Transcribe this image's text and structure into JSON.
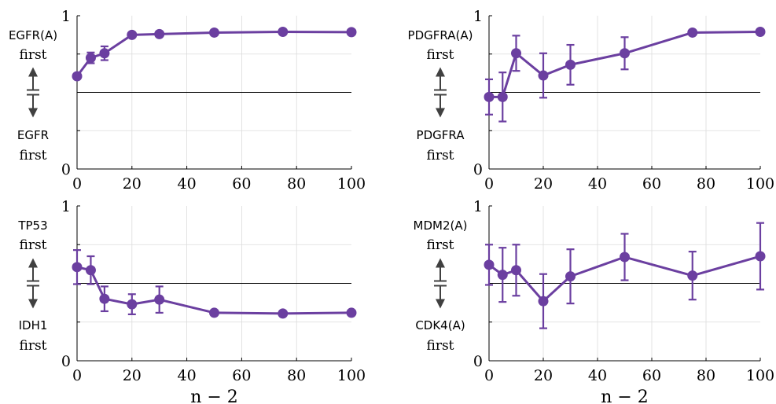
{
  "chart_data": [
    {
      "type": "line",
      "title": "",
      "xlabel": "",
      "ylabel": "",
      "top_label": [
        "EGFR(A)",
        "first"
      ],
      "bottom_label": [
        "EGFR",
        "first"
      ],
      "x": [
        0,
        5,
        10,
        20,
        30,
        50,
        75,
        100
      ],
      "xticks": [
        "0",
        "20",
        "40",
        "60",
        "80",
        "100"
      ],
      "yticks": [
        "0",
        "1"
      ],
      "xlim": [
        0,
        100
      ],
      "ylim": [
        0,
        1
      ],
      "reference_line": 0.5,
      "grid": true,
      "series": [
        {
          "values": [
            0.605,
            0.725,
            0.755,
            0.875,
            0.88,
            0.89,
            0.895,
            0.893
          ],
          "error": [
            0,
            0.035,
            0.045,
            0,
            0,
            0,
            0,
            0
          ]
        }
      ]
    },
    {
      "type": "line",
      "title": "",
      "xlabel": "",
      "ylabel": "",
      "top_label": [
        "PDGFRA(A)",
        "first"
      ],
      "bottom_label": [
        "PDGFRA",
        "first"
      ],
      "x": [
        0,
        5,
        10,
        20,
        30,
        50,
        75,
        100
      ],
      "xticks": [
        "0",
        "20",
        "40",
        "60",
        "80",
        "100"
      ],
      "yticks": [
        "0",
        "1"
      ],
      "xlim": [
        0,
        100
      ],
      "ylim": [
        0,
        1
      ],
      "reference_line": 0.5,
      "grid": true,
      "series": [
        {
          "values": [
            0.47,
            0.47,
            0.755,
            0.61,
            0.68,
            0.755,
            0.89,
            0.895
          ],
          "error": [
            0.115,
            0.16,
            0.115,
            0.145,
            0.13,
            0.105,
            0,
            0
          ]
        }
      ]
    },
    {
      "type": "line",
      "title": "",
      "xlabel": "n − 2",
      "ylabel": "",
      "top_label": [
        "TP53",
        "first"
      ],
      "bottom_label": [
        "IDH1",
        "first"
      ],
      "x": [
        0,
        5,
        10,
        20,
        30,
        50,
        75,
        100
      ],
      "xticks": [
        "0",
        "20",
        "40",
        "60",
        "80",
        "100"
      ],
      "yticks": [
        "0",
        "1"
      ],
      "xlim": [
        0,
        100
      ],
      "ylim": [
        0,
        1
      ],
      "reference_line": 0.5,
      "grid": true,
      "series": [
        {
          "values": [
            0.605,
            0.585,
            0.4,
            0.365,
            0.395,
            0.31,
            0.305,
            0.31
          ],
          "error": [
            0.11,
            0.09,
            0.08,
            0.065,
            0.085,
            0,
            0,
            0
          ]
        }
      ]
    },
    {
      "type": "line",
      "title": "",
      "xlabel": "n − 2",
      "ylabel": "",
      "top_label": [
        "MDM2(A)",
        "first"
      ],
      "bottom_label": [
        "CDK4(A)",
        "first"
      ],
      "x": [
        0,
        5,
        10,
        20,
        30,
        50,
        75,
        100
      ],
      "xticks": [
        "0",
        "20",
        "40",
        "60",
        "80",
        "100"
      ],
      "yticks": [
        "0",
        "1"
      ],
      "xlim": [
        0,
        100
      ],
      "ylim": [
        0,
        1
      ],
      "reference_line": 0.5,
      "grid": true,
      "series": [
        {
          "values": [
            0.62,
            0.555,
            0.585,
            0.385,
            0.545,
            0.67,
            0.55,
            0.675
          ],
          "error": [
            0.13,
            0.175,
            0.165,
            0.175,
            0.175,
            0.15,
            0.155,
            0.215
          ]
        }
      ]
    }
  ],
  "colors": {
    "series": "#6b3fa0",
    "grid": "#dcdcdc",
    "axis": "#000000",
    "reference": "#000000",
    "arrow": "#404040"
  }
}
